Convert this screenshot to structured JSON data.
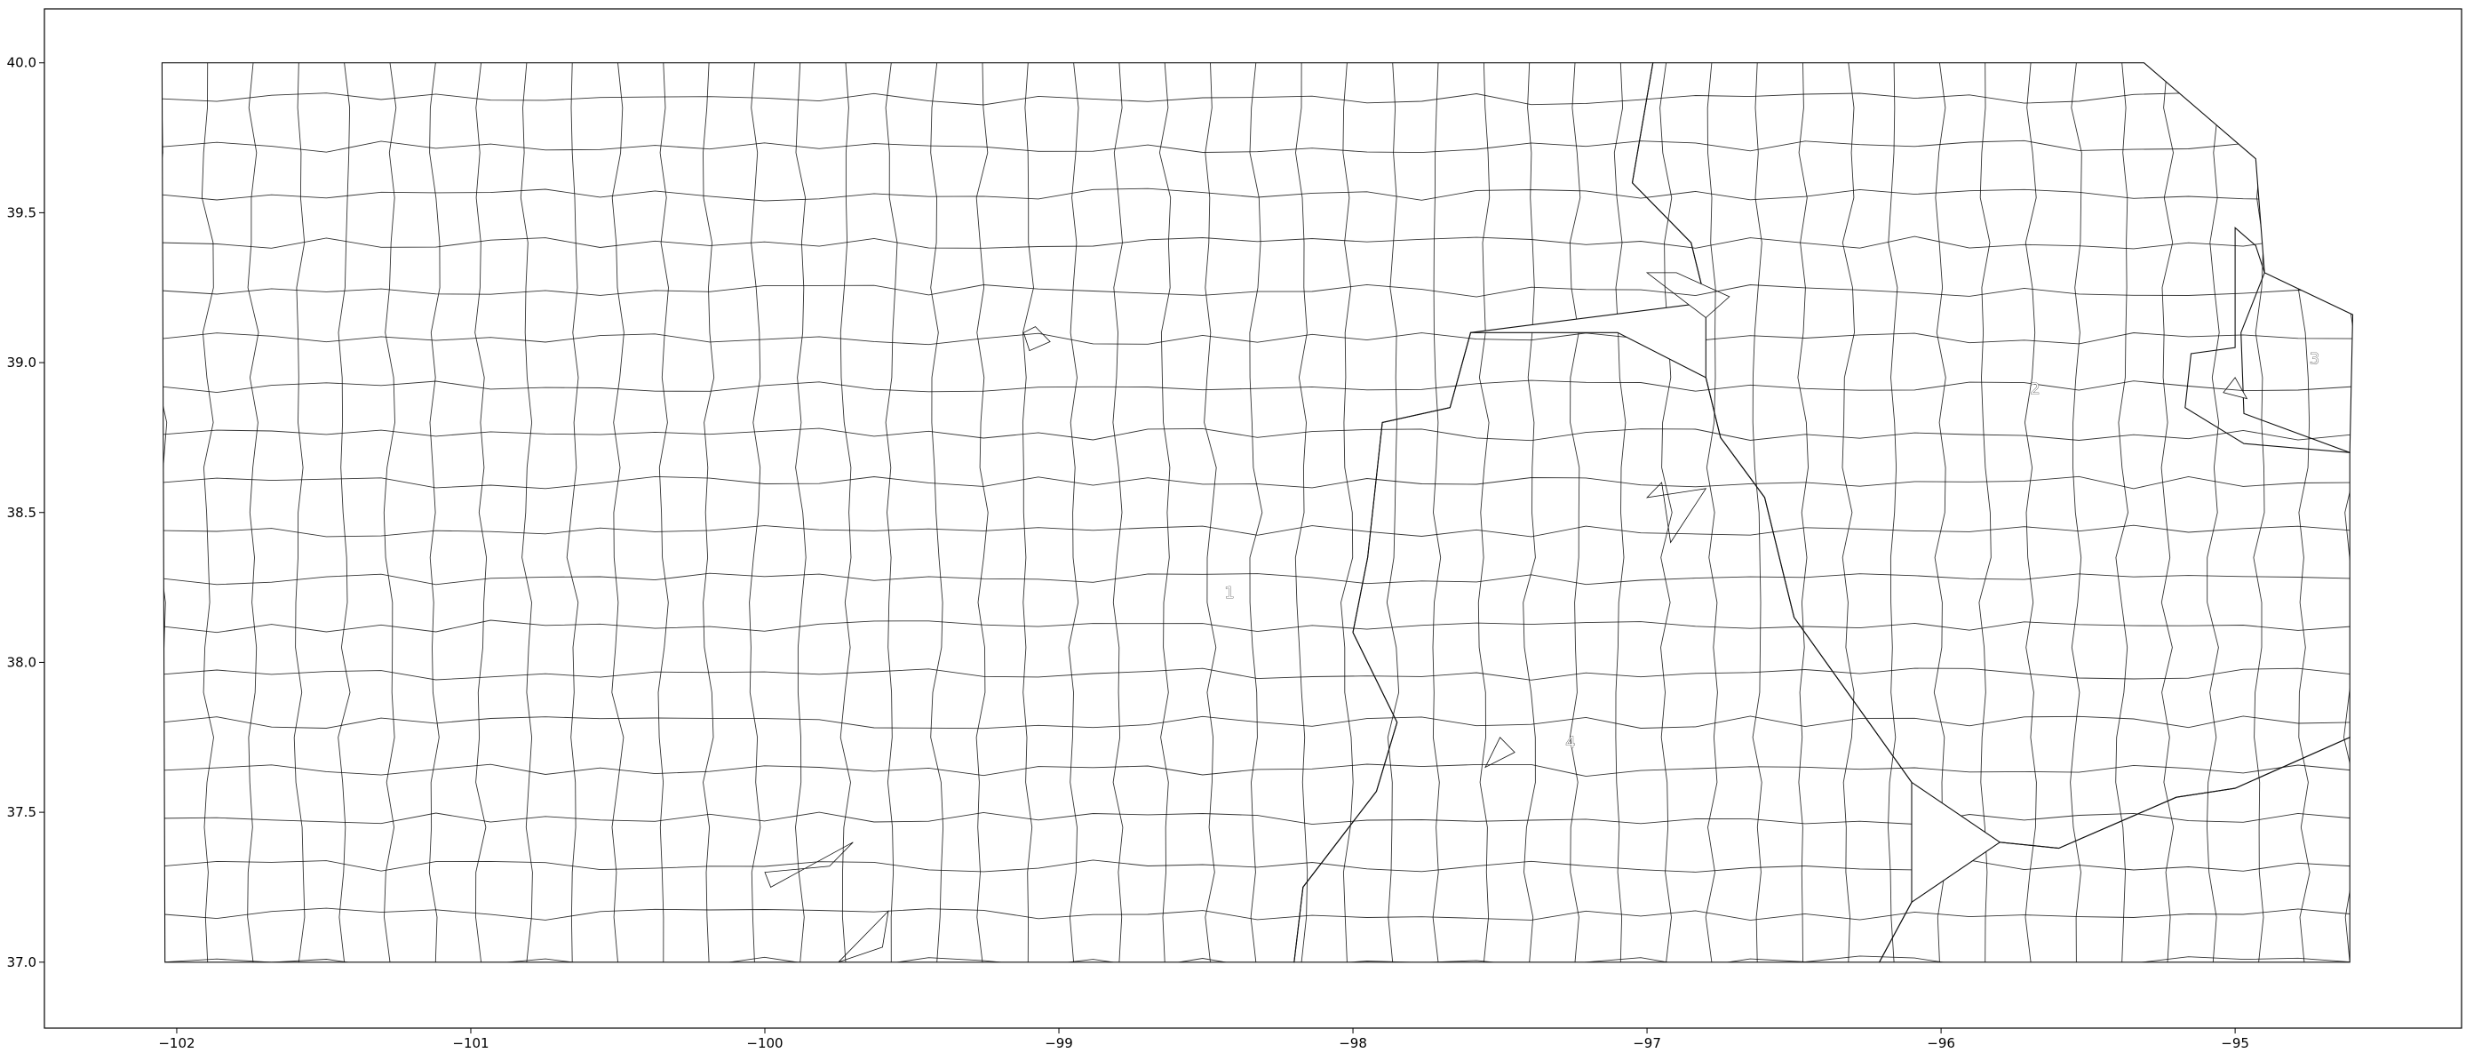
{
  "chart_data": {
    "type": "map",
    "title": "",
    "xlabel": "",
    "ylabel": "",
    "xlim": [
      -102.45,
      -94.23
    ],
    "ylim": [
      36.78,
      40.18
    ],
    "x_ticks": [
      {
        "value": -102,
        "label": "−102"
      },
      {
        "value": -101,
        "label": "−101"
      },
      {
        "value": -100,
        "label": "−100"
      },
      {
        "value": -99,
        "label": "−99"
      },
      {
        "value": -98,
        "label": "−98"
      },
      {
        "value": -97,
        "label": "−97"
      },
      {
        "value": -96,
        "label": "−96"
      },
      {
        "value": -95,
        "label": "−95"
      }
    ],
    "y_ticks": [
      {
        "value": 37.0,
        "label": "37.0"
      },
      {
        "value": 37.5,
        "label": "37.5"
      },
      {
        "value": 38.0,
        "label": "38.0"
      },
      {
        "value": 38.5,
        "label": "38.5"
      },
      {
        "value": 39.0,
        "label": "39.0"
      },
      {
        "value": 39.5,
        "label": "39.5"
      },
      {
        "value": 40.0,
        "label": "40.0"
      }
    ],
    "grid": false,
    "legend": "none",
    "districts": [
      {
        "label": "1",
        "color": "#7f6aa5",
        "label_pos": [
          -98.42,
          38.23
        ],
        "polygon": [
          [
            -102.05,
            40.0
          ],
          [
            -96.98,
            40.0
          ],
          [
            -97.05,
            39.6
          ],
          [
            -96.85,
            39.4
          ],
          [
            -96.8,
            39.2
          ],
          [
            -97.6,
            39.1
          ],
          [
            -97.67,
            38.85
          ],
          [
            -97.9,
            38.8
          ],
          [
            -97.95,
            38.35
          ],
          [
            -98.0,
            38.1
          ],
          [
            -97.85,
            37.8
          ],
          [
            -97.92,
            37.57
          ],
          [
            -98.17,
            37.25
          ],
          [
            -98.2,
            37.0
          ],
          [
            -102.04,
            37.0
          ]
        ]
      },
      {
        "label": "1",
        "color": "#7f6aa5",
        "label_pos": null,
        "polygon": [
          [
            -96.21,
            37.0
          ],
          [
            -94.61,
            37.0
          ],
          [
            -94.61,
            37.75
          ],
          [
            -95.0,
            37.58
          ],
          [
            -95.2,
            37.55
          ],
          [
            -95.6,
            37.38
          ],
          [
            -95.8,
            37.4
          ],
          [
            -96.1,
            37.2
          ]
        ]
      },
      {
        "label": "2",
        "color": "#859fc7",
        "label_pos": [
          -95.68,
          38.91
        ],
        "polygon": [
          [
            -96.98,
            40.0
          ],
          [
            -95.31,
            40.0
          ],
          [
            -94.93,
            39.68
          ],
          [
            -94.9,
            39.3
          ],
          [
            -94.98,
            39.1
          ],
          [
            -94.97,
            38.83
          ],
          [
            -94.61,
            38.7
          ],
          [
            -94.61,
            37.75
          ],
          [
            -95.0,
            37.58
          ],
          [
            -95.2,
            37.55
          ],
          [
            -95.6,
            37.38
          ],
          [
            -95.8,
            37.4
          ],
          [
            -96.1,
            37.6
          ],
          [
            -96.5,
            38.15
          ],
          [
            -96.6,
            38.55
          ],
          [
            -96.75,
            38.75
          ],
          [
            -96.8,
            38.95
          ],
          [
            -96.8,
            39.2
          ],
          [
            -96.85,
            39.4
          ],
          [
            -97.05,
            39.6
          ]
        ]
      },
      {
        "label": "3",
        "color": "#4a6450",
        "label_pos": [
          -94.73,
          39.01
        ],
        "polygon": [
          [
            -95.0,
            39.45
          ],
          [
            -94.93,
            39.39
          ],
          [
            -94.9,
            39.3
          ],
          [
            -94.6,
            39.16
          ],
          [
            -94.61,
            38.7
          ],
          [
            -94.97,
            38.73
          ],
          [
            -95.17,
            38.85
          ],
          [
            -95.15,
            39.03
          ],
          [
            -95.0,
            39.05
          ]
        ]
      },
      {
        "label": "4",
        "color": "#658fca",
        "label_pos": [
          -97.26,
          37.73
        ],
        "polygon": [
          [
            -98.2,
            37.0
          ],
          [
            -96.21,
            37.0
          ],
          [
            -96.1,
            37.2
          ],
          [
            -96.1,
            37.6
          ],
          [
            -96.5,
            38.15
          ],
          [
            -96.6,
            38.55
          ],
          [
            -96.75,
            38.75
          ],
          [
            -96.8,
            38.95
          ],
          [
            -97.1,
            39.1
          ],
          [
            -97.6,
            39.1
          ],
          [
            -97.67,
            38.85
          ],
          [
            -97.9,
            38.8
          ],
          [
            -97.95,
            38.35
          ],
          [
            -98.0,
            38.1
          ],
          [
            -97.85,
            37.8
          ],
          [
            -97.92,
            37.57
          ],
          [
            -98.17,
            37.25
          ]
        ]
      }
    ],
    "holes": [
      [
        [
          -99.12,
          39.1
        ],
        [
          -99.08,
          39.12
        ],
        [
          -99.03,
          39.07
        ],
        [
          -99.1,
          39.04
        ]
      ],
      [
        [
          -97.0,
          39.3
        ],
        [
          -96.8,
          39.15
        ],
        [
          -96.72,
          39.22
        ],
        [
          -96.9,
          39.3
        ]
      ],
      [
        [
          -97.0,
          38.55
        ],
        [
          -96.95,
          38.6
        ],
        [
          -96.92,
          38.4
        ],
        [
          -96.8,
          38.58
        ]
      ],
      [
        [
          -100.0,
          37.3
        ],
        [
          -99.78,
          37.32
        ],
        [
          -99.7,
          37.4
        ],
        [
          -99.98,
          37.25
        ]
      ],
      [
        [
          -99.6,
          37.05
        ],
        [
          -99.75,
          37.0
        ],
        [
          -99.58,
          37.17
        ]
      ],
      [
        [
          -97.5,
          37.75
        ],
        [
          -97.45,
          37.7
        ],
        [
          -97.55,
          37.65
        ]
      ],
      [
        [
          -95.0,
          38.95
        ],
        [
          -94.96,
          38.88
        ],
        [
          -95.04,
          38.9
        ]
      ]
    ]
  }
}
